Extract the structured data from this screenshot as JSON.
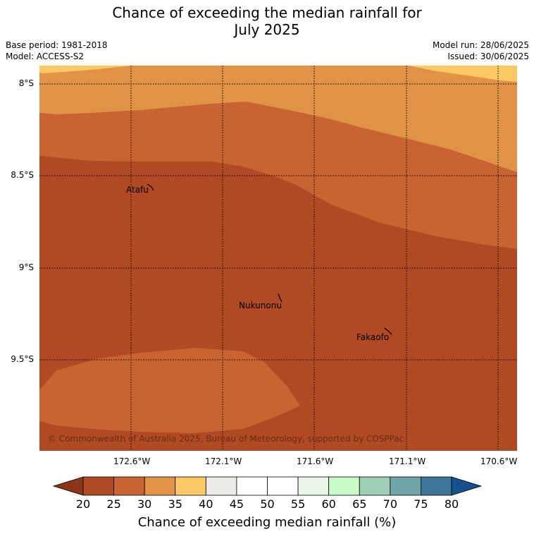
{
  "title_line1": "Chance of exceeding the median rainfall for",
  "title_line2": "July 2025",
  "base_period": "Base period: 1981-2018",
  "model": "Model: ACCESS-S2",
  "model_run": "Model run: 28/06/2025",
  "issued": "Issued: 30/06/2025",
  "copyright": "© Commonwealth of Australia 2025, Bureau of Meteorology, supported by COSPPac",
  "places": {
    "atafu": "Atafu",
    "nukunonu": "Nukunonu",
    "fakaofo": "Fakaofo"
  },
  "lat_ticks": [
    "8°S",
    "8.5°S",
    "9°S",
    "9.5°S"
  ],
  "lon_ticks": [
    "172.6°W",
    "172.1°W",
    "171.6°W",
    "171.1°W",
    "170.6°W"
  ],
  "colorbar": {
    "title": "Chance of exceeding median rainfall (%)",
    "ticks": [
      "20",
      "25",
      "30",
      "35",
      "40",
      "45",
      "50",
      "55",
      "60",
      "65",
      "70",
      "75",
      "80"
    ],
    "colors": [
      "#b04a24",
      "#c86432",
      "#e09246",
      "#fdc964",
      "#ecebe6",
      "#ffffff",
      "#ffffff",
      "#e9f5e6",
      "#c9fbc9",
      "#9ecfb6",
      "#6fa4a8",
      "#3c7596"
    ],
    "under_color": "#8a3518",
    "over_color": "#15508e"
  }
}
